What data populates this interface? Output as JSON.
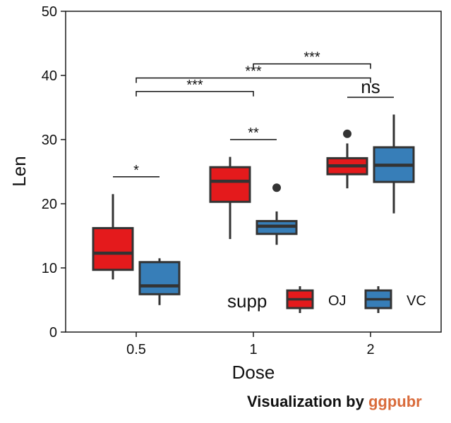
{
  "chart_data": {
    "type": "boxplot",
    "xlabel": "Dose",
    "ylabel": "Len",
    "ylim": [
      0,
      50
    ],
    "yticks": [
      0,
      10,
      20,
      30,
      40,
      50
    ],
    "categories": [
      "0.5",
      "1",
      "2"
    ],
    "legend": {
      "title": "supp",
      "position": "bottom-right-inside",
      "entries": [
        {
          "label": "OJ",
          "color": "#e41a1c"
        },
        {
          "label": "VC",
          "color": "#377eb8"
        }
      ]
    },
    "series": [
      {
        "name": "OJ",
        "color": "#e41a1c",
        "boxes": [
          {
            "category": "0.5",
            "min": 8.2,
            "q1": 9.7,
            "median": 12.3,
            "q3": 16.2,
            "max": 21.5,
            "outliers": []
          },
          {
            "category": "1",
            "min": 14.5,
            "q1": 20.3,
            "median": 23.5,
            "q3": 25.7,
            "max": 27.3,
            "outliers": []
          },
          {
            "category": "2",
            "min": 22.4,
            "q1": 24.6,
            "median": 25.9,
            "q3": 27.1,
            "max": 29.4,
            "outliers": [
              30.9
            ]
          }
        ]
      },
      {
        "name": "VC",
        "color": "#377eb8",
        "boxes": [
          {
            "category": "0.5",
            "min": 4.2,
            "q1": 5.9,
            "median": 7.2,
            "q3": 10.9,
            "max": 11.5,
            "outliers": []
          },
          {
            "category": "1",
            "min": 13.6,
            "q1": 15.3,
            "median": 16.5,
            "q3": 17.3,
            "max": 18.8,
            "outliers": [
              22.5
            ]
          },
          {
            "category": "2",
            "min": 18.5,
            "q1": 23.4,
            "median": 26.0,
            "q3": 28.8,
            "max": 33.9,
            "outliers": []
          }
        ]
      }
    ],
    "annotations": [
      {
        "label": "*",
        "from": "0.5 OJ",
        "to": "0.5 VC",
        "y": 24.2
      },
      {
        "label": "**",
        "from": "1 OJ",
        "to": "1 VC",
        "y": 30.0
      },
      {
        "label": "***",
        "from": "0.5",
        "to": "1",
        "y": 37.5
      },
      {
        "label": "***",
        "from": "0.5",
        "to": "2",
        "y": 39.6
      },
      {
        "label": "***",
        "from": "1",
        "to": "2",
        "y": 41.8
      },
      {
        "label": "ns",
        "from": "2 OJ",
        "to": "2 VC",
        "y": 36.6
      }
    ]
  },
  "caption": {
    "text": "Visualization by ",
    "brand": "ggpubr"
  }
}
